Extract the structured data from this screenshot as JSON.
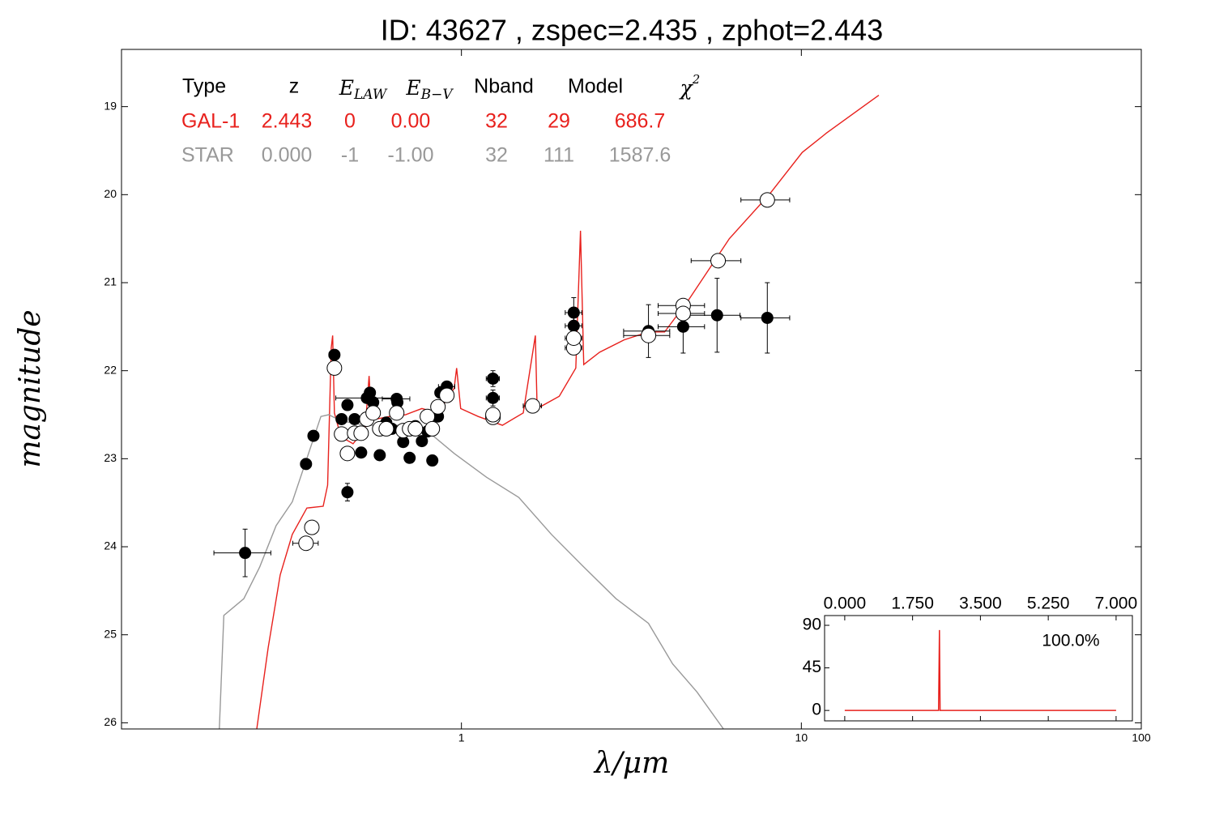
{
  "chart_data": [
    {
      "type": "scatter",
      "title": "ID:  43627 , zspec=2.435 , zphot=2.443",
      "x_label": "λ/μm",
      "y_label": "magnitude",
      "xscale": "log",
      "invert_y": true,
      "xlim": [
        0.1,
        100
      ],
      "ylim": [
        18.35,
        26.07
      ],
      "xticks": [
        1,
        10,
        100
      ],
      "yticks": [
        19,
        20,
        21,
        22,
        23,
        24,
        25,
        26
      ],
      "series": [
        {
          "mode": "line",
          "color": "#e8211d",
          "x": [
            0.25,
            0.27,
            0.293,
            0.318,
            0.351,
            0.392,
            0.404,
            0.414,
            0.418,
            0.423,
            0.442,
            0.48,
            0.521,
            0.535,
            0.544,
            0.614,
            0.685,
            0.765,
            0.853,
            0.952,
            0.968,
            0.995,
            1.12,
            1.32,
            1.52,
            1.65,
            1.67,
            1.94,
            2.17,
            2.24,
            2.29,
            2.55,
            3.01,
            3.55,
            3.96,
            4.67,
            6.14,
            8.08,
            10.06,
            11.86,
            16.9
          ],
          "values": [
            26.07,
            25.15,
            24.32,
            23.86,
            23.56,
            23.54,
            23.3,
            21.74,
            21.6,
            22.48,
            22.75,
            22.83,
            22.66,
            22.06,
            22.56,
            22.52,
            22.5,
            22.43,
            22.48,
            22.2,
            21.97,
            22.43,
            22.52,
            22.62,
            22.48,
            21.6,
            22.43,
            22.29,
            21.97,
            20.41,
            21.93,
            21.79,
            21.65,
            21.56,
            21.56,
            21.19,
            20.5,
            19.99,
            19.52,
            19.3,
            18.87
          ]
        },
        {
          "mode": "line",
          "color": "#999999",
          "x": [
            0.194,
            0.2,
            0.229,
            0.255,
            0.285,
            0.318,
            0.355,
            0.386,
            0.407,
            0.442,
            0.521,
            0.685,
            0.808,
            0.952,
            1.185,
            1.475,
            1.84,
            2.29,
            2.85,
            3.55,
            4.18,
            4.93,
            5.9
          ],
          "values": [
            26.07,
            24.78,
            24.59,
            24.23,
            23.76,
            23.49,
            22.94,
            22.52,
            22.5,
            22.57,
            22.62,
            22.62,
            22.71,
            22.94,
            23.21,
            23.44,
            23.86,
            24.23,
            24.59,
            24.87,
            25.33,
            25.65,
            26.07
          ]
        },
        {
          "mode": "marker",
          "color": "#000000",
          "fill": "#000000",
          "x": [
            0.231,
            0.349,
            0.367,
            0.423,
            0.462,
            0.462,
            0.444,
            0.485,
            0.507,
            0.527,
            0.538,
            0.55,
            0.575,
            0.601,
            0.624,
            0.645,
            0.648,
            0.674,
            0.704,
            0.732,
            0.765,
            0.794,
            0.821,
            0.853,
            0.867,
            0.906,
            1.238,
            1.238,
            2.14,
            2.14,
            3.55,
            4.49,
            5.65,
            7.94
          ],
          "values": [
            24.07,
            23.06,
            22.74,
            21.82,
            22.39,
            23.38,
            22.55,
            22.55,
            22.93,
            22.31,
            22.25,
            22.36,
            22.96,
            22.59,
            22.66,
            22.32,
            22.36,
            22.81,
            22.99,
            22.63,
            22.8,
            22.69,
            23.02,
            22.52,
            22.25,
            22.18,
            22.09,
            22.31,
            21.34,
            21.49,
            21.55,
            21.5,
            21.37,
            21.4
          ],
          "xerr": [
            0.044,
            0.012,
            0.012,
            0.015,
            0.012,
            0.012,
            0.01,
            0.012,
            0.013,
            0.1,
            0.015,
            0.014,
            0.014,
            0.015,
            0.015,
            0.06,
            0.015,
            0.016,
            0.017,
            0.018,
            0.018,
            0.019,
            0.02,
            0.02,
            0.02,
            0.05,
            0.055,
            0.055,
            0.12,
            0.12,
            0.55,
            0.7,
            0.95,
            1.3
          ],
          "yerr": [
            0.27,
            0.05,
            0.05,
            0.05,
            0.06,
            0.1,
            0.05,
            0.05,
            0.05,
            0.05,
            0.05,
            0.05,
            0.05,
            0.05,
            0.05,
            0.05,
            0.05,
            0.05,
            0.05,
            0.05,
            0.05,
            0.05,
            0.06,
            0.05,
            0.05,
            0.05,
            0.09,
            0.09,
            0.17,
            0.12,
            0.3,
            0.3,
            0.42,
            0.4
          ]
        },
        {
          "mode": "marker",
          "color": "#000000",
          "fill": "#ffffff",
          "x": [
            0.363,
            0.349,
            0.423,
            0.444,
            0.462,
            0.485,
            0.507,
            0.527,
            0.55,
            0.575,
            0.601,
            0.645,
            0.674,
            0.704,
            0.732,
            0.794,
            0.821,
            0.853,
            0.906,
            1.238,
            1.238,
            1.62,
            2.14,
            2.14,
            3.55,
            4.49,
            4.49,
            5.69,
            7.94
          ],
          "values": [
            23.78,
            23.96,
            21.97,
            22.72,
            22.94,
            22.71,
            22.71,
            22.55,
            22.48,
            22.66,
            22.66,
            22.48,
            22.68,
            22.66,
            22.66,
            22.52,
            22.66,
            22.41,
            22.28,
            22.53,
            22.5,
            22.4,
            21.74,
            21.63,
            21.6,
            21.26,
            21.35,
            20.75,
            20.06
          ],
          "xerr": [
            0.012,
            0.03,
            0.012,
            0.01,
            0.012,
            0.012,
            0.013,
            0.014,
            0.014,
            0.014,
            0.015,
            0.015,
            0.016,
            0.017,
            0.018,
            0.019,
            0.02,
            0.02,
            0.02,
            0.055,
            0.055,
            0.1,
            0.12,
            0.12,
            0.55,
            0.7,
            0.7,
            0.95,
            1.3
          ]
        }
      ],
      "table": {
        "headers": [
          "Type",
          "z",
          {
            "text": "E",
            "sub": "LAW"
          },
          {
            "text": "E",
            "sub": "B−V"
          },
          "Nband",
          "Model",
          {
            "text": "χ",
            "sup": "2"
          }
        ],
        "rows": [
          {
            "color": "#e8211d",
            "cells": [
              "GAL-1",
              "2.443",
              "0",
              "0.00",
              "32",
              "29",
              "686.7"
            ]
          },
          {
            "color": "#999999",
            "cells": [
              "STAR",
              "0.000",
              "-1",
              "-1.00",
              "32",
              "111",
              "1587.6"
            ]
          }
        ]
      }
    },
    {
      "type": "line",
      "xlim": [
        -0.52,
        7.42
      ],
      "ylim": [
        -11,
        100.3
      ],
      "xticks": [
        {
          "value": 0,
          "label": "0.000"
        },
        {
          "value": 1.75,
          "label": "1.750"
        },
        {
          "value": 3.5,
          "label": "3.500"
        },
        {
          "value": 5.25,
          "label": "5.250"
        },
        {
          "value": 7,
          "label": "7.000"
        }
      ],
      "yticks": [
        0,
        45,
        90
      ],
      "annotation": "100.0%",
      "series": [
        {
          "color": "#e8211d",
          "x": [
            0,
            2.42,
            2.443,
            2.46,
            7
          ],
          "values": [
            0,
            0,
            85,
            0,
            0
          ]
        }
      ]
    }
  ]
}
